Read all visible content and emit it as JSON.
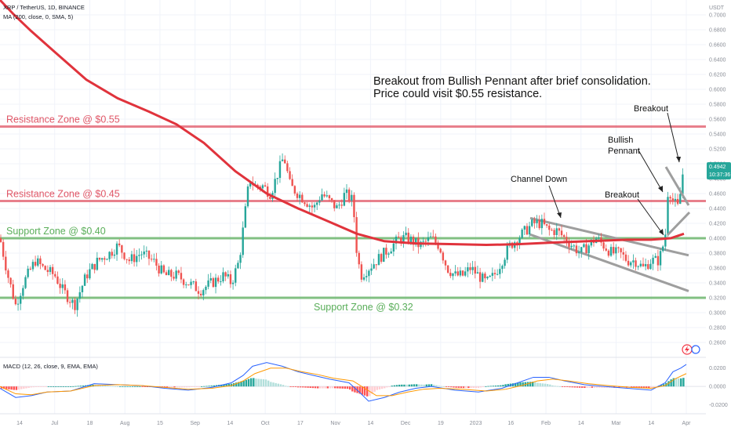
{
  "header": {
    "symbol_line": "XRP / TetherUS, 1D, BINANCE",
    "ma_line": "MA (200, close, 0, SMA, 5)",
    "macd_line": "MACD (12, 26, close, 9, EMA, EMA)",
    "currency": "USDT"
  },
  "price_tag": {
    "value": "0.4942",
    "countdown": "10:37:36"
  },
  "colors": {
    "up": "#26a69a",
    "down": "#ef5350",
    "ma": "#e0333c",
    "resistance": "#e05565",
    "support": "#5aae5a",
    "channel": "#9e9e9e",
    "macd": "#2962ff",
    "signal": "#ff9800",
    "price_tag": "#26a69a"
  },
  "chart_data": {
    "type": "candlestick",
    "title": "XRP / TetherUS, 1D, BINANCE",
    "price_axis": {
      "ylim": [
        0.24,
        0.72
      ],
      "ticks": [
        "0.7000",
        "0.6800",
        "0.6600",
        "0.6400",
        "0.6200",
        "0.6000",
        "0.5800",
        "0.5600",
        "0.5400",
        "0.5200",
        "0.5000",
        "0.4800",
        "0.4600",
        "0.4400",
        "0.4200",
        "0.4000",
        "0.3800",
        "0.3600",
        "0.3400",
        "0.3200",
        "0.3000",
        "0.2800",
        "0.2600"
      ]
    },
    "macd_axis": {
      "ylim": [
        -0.028,
        0.03
      ],
      "ticks": [
        "0.0200",
        "0.0000",
        "-0.0200"
      ]
    },
    "time_axis": [
      "14",
      "Jul",
      "18",
      "Aug",
      "15",
      "Sep",
      "14",
      "Oct",
      "17",
      "Nov",
      "14",
      "Dec",
      "19",
      "2023",
      "16",
      "Feb",
      "14",
      "Mar",
      "14",
      "Apr"
    ],
    "zones": [
      {
        "label": "Resistance Zone @ $0.55",
        "value": 0.55,
        "kind": "resistance"
      },
      {
        "label": "Resistance Zone @ $0.45",
        "value": 0.45,
        "kind": "resistance"
      },
      {
        "label": "Support Zone @ $0.40",
        "value": 0.4,
        "kind": "support"
      },
      {
        "label": "Support Zone @ $0.32",
        "value": 0.32,
        "kind": "support"
      }
    ],
    "annotations": {
      "headline": [
        "Breakout from Bullish Pennant after brief consolidation.",
        "Price could visit $0.55 resistance."
      ],
      "channel_down": "Channel Down",
      "breakout_lower": "Breakout",
      "bullish_pennant": [
        "Bullish",
        "Pennant"
      ],
      "breakout_upper": "Breakout"
    },
    "series": [
      {
        "name": "MA (200, close, 0, SMA, 5)",
        "kind": "line",
        "points": [
          [
            0,
            0.72
          ],
          [
            18,
            0.7
          ],
          [
            40,
            0.678
          ],
          [
            70,
            0.65
          ],
          [
            110,
            0.613
          ],
          [
            150,
            0.588
          ],
          [
            190,
            0.57
          ],
          [
            225,
            0.553
          ],
          [
            260,
            0.528
          ],
          [
            300,
            0.49
          ],
          [
            340,
            0.46
          ],
          [
            380,
            0.44
          ],
          [
            420,
            0.422
          ],
          [
            455,
            0.406
          ],
          [
            490,
            0.396
          ],
          [
            530,
            0.393
          ],
          [
            580,
            0.392
          ],
          [
            620,
            0.391
          ],
          [
            660,
            0.392
          ],
          [
            700,
            0.394
          ],
          [
            750,
            0.396
          ],
          [
            800,
            0.398
          ],
          [
            830,
            0.398
          ],
          [
            855,
            0.4
          ],
          [
            872,
            0.406
          ]
        ]
      },
      {
        "name": "Price",
        "kind": "ohlc",
        "close_path": [
          [
            0,
            0.4
          ],
          [
            10,
            0.35
          ],
          [
            20,
            0.31
          ],
          [
            30,
            0.34
          ],
          [
            45,
            0.37
          ],
          [
            55,
            0.36
          ],
          [
            70,
            0.35
          ],
          [
            80,
            0.33
          ],
          [
            95,
            0.31
          ],
          [
            110,
            0.35
          ],
          [
            125,
            0.37
          ],
          [
            140,
            0.38
          ],
          [
            150,
            0.39
          ],
          [
            165,
            0.37
          ],
          [
            180,
            0.38
          ],
          [
            195,
            0.37
          ],
          [
            210,
            0.35
          ],
          [
            225,
            0.35
          ],
          [
            240,
            0.34
          ],
          [
            255,
            0.33
          ],
          [
            270,
            0.34
          ],
          [
            285,
            0.35
          ],
          [
            295,
            0.34
          ],
          [
            305,
            0.37
          ],
          [
            312,
            0.43
          ],
          [
            318,
            0.48
          ],
          [
            325,
            0.47
          ],
          [
            335,
            0.47
          ],
          [
            345,
            0.46
          ],
          [
            355,
            0.49
          ],
          [
            362,
            0.51
          ],
          [
            370,
            0.47
          ],
          [
            380,
            0.46
          ],
          [
            390,
            0.45
          ],
          [
            400,
            0.44
          ],
          [
            410,
            0.46
          ],
          [
            420,
            0.45
          ],
          [
            430,
            0.44
          ],
          [
            440,
            0.46
          ],
          [
            450,
            0.45
          ],
          [
            455,
            0.38
          ],
          [
            460,
            0.35
          ],
          [
            470,
            0.36
          ],
          [
            480,
            0.37
          ],
          [
            490,
            0.38
          ],
          [
            500,
            0.39
          ],
          [
            510,
            0.4
          ],
          [
            520,
            0.4
          ],
          [
            535,
            0.39
          ],
          [
            550,
            0.4
          ],
          [
            560,
            0.39
          ],
          [
            570,
            0.36
          ],
          [
            580,
            0.35
          ],
          [
            590,
            0.35
          ],
          [
            600,
            0.36
          ],
          [
            610,
            0.35
          ],
          [
            620,
            0.34
          ],
          [
            630,
            0.35
          ],
          [
            640,
            0.37
          ],
          [
            650,
            0.39
          ],
          [
            660,
            0.4
          ],
          [
            670,
            0.41
          ],
          [
            680,
            0.42
          ],
          [
            690,
            0.42
          ],
          [
            700,
            0.41
          ],
          [
            710,
            0.41
          ],
          [
            720,
            0.4
          ],
          [
            730,
            0.39
          ],
          [
            740,
            0.38
          ],
          [
            750,
            0.39
          ],
          [
            760,
            0.4
          ],
          [
            770,
            0.39
          ],
          [
            780,
            0.38
          ],
          [
            790,
            0.38
          ],
          [
            800,
            0.37
          ],
          [
            810,
            0.37
          ],
          [
            820,
            0.36
          ],
          [
            830,
            0.37
          ],
          [
            840,
            0.37
          ],
          [
            848,
            0.4
          ],
          [
            852,
            0.47
          ],
          [
            858,
            0.45
          ],
          [
            865,
            0.44
          ],
          [
            872,
            0.5
          ]
        ]
      },
      {
        "name": "MACD",
        "kind": "line",
        "points": [
          [
            0,
            -0.002
          ],
          [
            20,
            -0.012
          ],
          [
            40,
            -0.01
          ],
          [
            60,
            -0.006
          ],
          [
            90,
            -0.005
          ],
          [
            120,
            0.003
          ],
          [
            150,
            0.002
          ],
          [
            180,
            0.001
          ],
          [
            210,
            -0.002
          ],
          [
            240,
            -0.004
          ],
          [
            270,
            -0.001
          ],
          [
            295,
            0.004
          ],
          [
            310,
            0.012
          ],
          [
            322,
            0.022
          ],
          [
            340,
            0.026
          ],
          [
            360,
            0.022
          ],
          [
            380,
            0.016
          ],
          [
            400,
            0.012
          ],
          [
            420,
            0.008
          ],
          [
            445,
            0.004
          ],
          [
            458,
            -0.006
          ],
          [
            470,
            -0.016
          ],
          [
            490,
            -0.012
          ],
          [
            510,
            -0.006
          ],
          [
            530,
            -0.002
          ],
          [
            550,
            0.0
          ],
          [
            580,
            -0.004
          ],
          [
            610,
            -0.006
          ],
          [
            640,
            -0.002
          ],
          [
            660,
            0.004
          ],
          [
            680,
            0.01
          ],
          [
            700,
            0.01
          ],
          [
            720,
            0.006
          ],
          [
            745,
            0.002
          ],
          [
            770,
            0.0
          ],
          [
            800,
            -0.002
          ],
          [
            830,
            -0.004
          ],
          [
            848,
            0.004
          ],
          [
            858,
            0.016
          ],
          [
            868,
            0.02
          ],
          [
            875,
            0.024
          ]
        ]
      },
      {
        "name": "Signal",
        "kind": "line",
        "points": [
          [
            0,
            0.0
          ],
          [
            20,
            -0.008
          ],
          [
            40,
            -0.009
          ],
          [
            60,
            -0.006
          ],
          [
            90,
            -0.005
          ],
          [
            120,
            0.001
          ],
          [
            150,
            0.002
          ],
          [
            180,
            0.001
          ],
          [
            210,
            -0.001
          ],
          [
            240,
            -0.003
          ],
          [
            270,
            -0.002
          ],
          [
            295,
            0.001
          ],
          [
            310,
            0.006
          ],
          [
            325,
            0.014
          ],
          [
            345,
            0.02
          ],
          [
            365,
            0.02
          ],
          [
            385,
            0.016
          ],
          [
            405,
            0.013
          ],
          [
            425,
            0.009
          ],
          [
            450,
            0.006
          ],
          [
            465,
            -0.002
          ],
          [
            480,
            -0.01
          ],
          [
            500,
            -0.01
          ],
          [
            520,
            -0.006
          ],
          [
            540,
            -0.003
          ],
          [
            560,
            -0.002
          ],
          [
            590,
            -0.003
          ],
          [
            620,
            -0.005
          ],
          [
            645,
            -0.003
          ],
          [
            665,
            0.001
          ],
          [
            685,
            0.006
          ],
          [
            705,
            0.008
          ],
          [
            725,
            0.006
          ],
          [
            750,
            0.003
          ],
          [
            775,
            0.001
          ],
          [
            805,
            -0.001
          ],
          [
            830,
            -0.002
          ],
          [
            848,
            0.001
          ],
          [
            860,
            0.008
          ],
          [
            875,
            0.014
          ]
        ]
      }
    ]
  }
}
